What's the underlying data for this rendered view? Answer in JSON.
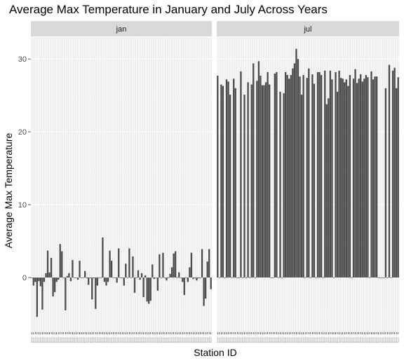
{
  "chart_data": {
    "type": "bar",
    "title": "Average Max Temperature in January and July Across Years",
    "xlabel": "Station ID",
    "ylabel": "Average Max Temperature",
    "facet_by": "month",
    "yticks": [
      0,
      10,
      20,
      30
    ],
    "ylim": [
      -7.5,
      33
    ],
    "grid": true,
    "legend": "none",
    "bar_color": "#4d4d4d",
    "panel_background": "#ebebeb",
    "strip_background": "#d9d9d9",
    "x_tick_label_text": "USC00",
    "panels": [
      {
        "label": "jan",
        "values": [
          0.0,
          -1.1,
          -0.6,
          -5.4,
          -0.5,
          -1.2,
          -4.4,
          -0.6,
          0.6,
          3.7,
          0.7,
          2.7,
          -2.6,
          -2.0,
          -0.6,
          -0.3,
          4.6,
          3.6,
          0.0,
          -4.5,
          0.2,
          0.6,
          -0.5,
          2.4,
          0.0,
          0.0,
          -0.3,
          2.3,
          0.0,
          0.0,
          0.9,
          -0.1,
          -1.0,
          -0.1,
          -3.0,
          -0.1,
          -4.3,
          -1.1,
          0.0,
          0.0,
          5.5,
          -0.6,
          -1.1,
          -0.6,
          3.7,
          2.3,
          0.0,
          0.0,
          -0.7,
          4.0,
          0.0,
          0.0,
          -1.1,
          1.9,
          0.0,
          4.0,
          0.0,
          2.9,
          -2.1,
          0.0,
          1.0,
          -0.3,
          0.6,
          -2.7,
          0.3,
          -3.3,
          -3.6,
          -3.2,
          1.8,
          -0.2,
          0.0,
          -1.8,
          3.2,
          0.0,
          3.4,
          0.0,
          -0.4,
          0.0,
          0.5,
          1.4,
          3.3,
          3.6,
          0.0,
          0.7,
          0.0,
          -0.6,
          -2.4,
          0.0,
          -0.6,
          1.4,
          3.4,
          -0.2,
          -0.1,
          -0.4,
          -0.1,
          -0.1,
          3.9,
          -3.9,
          -2.9,
          2.2,
          3.9,
          -1.6
        ]
      },
      {
        "label": "jul",
        "values": [
          27.7,
          0.0,
          26.5,
          26.3,
          0.0,
          27.2,
          26.9,
          25.1,
          0.0,
          27.3,
          26.0,
          0.0,
          0.0,
          28.3,
          0.0,
          25.1,
          0.0,
          26.8,
          0.0,
          26.5,
          29.4,
          0.0,
          27.0,
          29.7,
          27.7,
          26.4,
          26.4,
          26.8,
          28.2,
          26.5,
          0.0,
          0.0,
          28.0,
          28.2,
          0.0,
          25.5,
          0.0,
          25.3,
          28.2,
          27.8,
          27.3,
          27.8,
          28.7,
          29.4,
          31.4,
          30.0,
          27.6,
          25.1,
          27.8,
          0.0,
          27.4,
          28.7,
          0.0,
          27.9,
          26.6,
          0.0,
          28.2,
          28.2,
          27.8,
          0.0,
          28.4,
          23.8,
          24.6,
          28.4,
          27.2,
          0.0,
          28.2,
          25.5,
          28.4,
          27.4,
          27.3,
          26.8,
          27.2,
          26.3,
          27.8,
          0.0,
          27.3,
          28.6,
          26.7,
          27.3,
          27.9,
          26.9,
          27.3,
          27.8,
          27.5,
          0.0,
          28.3,
          27.2,
          27.6,
          27.6,
          0.0,
          0.0,
          0.0,
          0.0,
          26.0,
          0.0,
          29.2,
          0.0,
          28.4,
          28.8,
          26.0,
          27.5
        ]
      }
    ]
  }
}
